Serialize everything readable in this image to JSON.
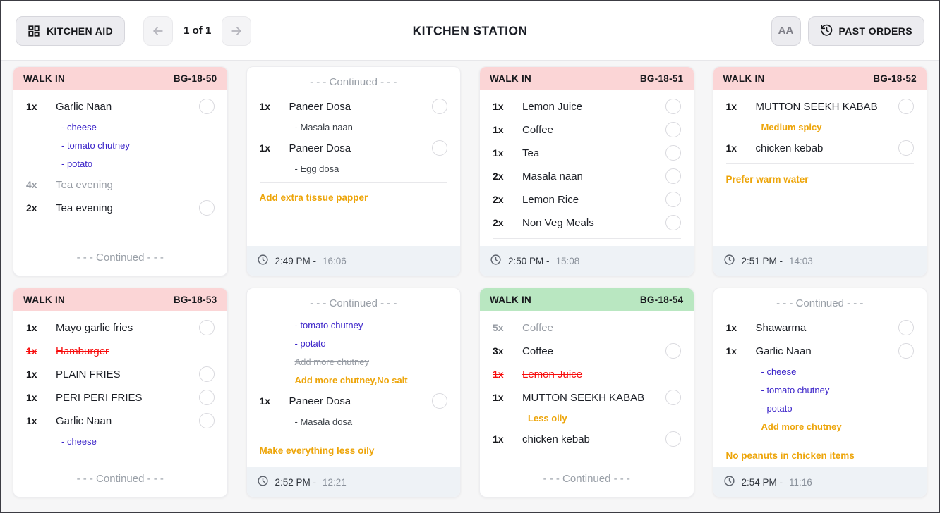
{
  "topbar": {
    "kitchen_aid_label": "KITCHEN AID",
    "pagination": "1 of 1",
    "title": "KITCHEN STATION",
    "font_size_label": "AA",
    "past_orders_label": "PAST ORDERS"
  },
  "labels": {
    "continued": "- - - Continued - - -",
    "time_separator": "-"
  },
  "colors": {
    "header_pink": "#fbd5d6",
    "header_green": "#b9e7c1",
    "modifier_blue": "#3b24c9",
    "note_orange": "#eda50a",
    "cancelled_red": "#f70d0d",
    "struck_gray": "#969ba3",
    "footer_bg": "#eef2f6"
  },
  "cards": [
    {
      "type": "order",
      "variant": "pink",
      "order_type": "WALK IN",
      "order_id": "BG-18-50",
      "lines": [
        {
          "kind": "item",
          "qty": "1x",
          "name": "Garlic Naan",
          "circle": true
        },
        {
          "kind": "mod",
          "style": "blue",
          "text": "- cheese"
        },
        {
          "kind": "mod",
          "style": "blue",
          "text": "- tomato chutney"
        },
        {
          "kind": "mod",
          "style": "blue",
          "text": "- potato"
        },
        {
          "kind": "item",
          "qty": "4x",
          "name": "Tea evening",
          "state": "struck-gray"
        },
        {
          "kind": "item",
          "qty": "2x",
          "name": "Tea evening",
          "circle": true
        }
      ],
      "divider": false,
      "note": null,
      "footer": {
        "type": "continued"
      }
    },
    {
      "type": "continued",
      "lines": [
        {
          "kind": "item",
          "qty": "1x",
          "name": "Paneer Dosa",
          "circle": true
        },
        {
          "kind": "mod",
          "style": "dark",
          "text": "- Masala naan"
        },
        {
          "kind": "item",
          "qty": "1x",
          "name": "Paneer Dosa",
          "circle": true
        },
        {
          "kind": "mod",
          "style": "dark",
          "text": "- Egg dosa"
        }
      ],
      "divider": true,
      "note": "Add extra tissue papper",
      "footer": {
        "type": "time",
        "time": "2:49 PM",
        "elapsed": "16:06"
      }
    },
    {
      "type": "order",
      "variant": "pink",
      "order_type": "WALK IN",
      "order_id": "BG-18-51",
      "lines": [
        {
          "kind": "item",
          "qty": "1x",
          "name": "Lemon Juice",
          "circle": true
        },
        {
          "kind": "item",
          "qty": "1x",
          "name": "Coffee",
          "circle": true
        },
        {
          "kind": "item",
          "qty": "1x",
          "name": "Tea",
          "circle": true
        },
        {
          "kind": "item",
          "qty": "2x",
          "name": "Masala naan",
          "circle": true
        },
        {
          "kind": "item",
          "qty": "2x",
          "name": "Lemon Rice",
          "circle": true
        },
        {
          "kind": "item",
          "qty": "2x",
          "name": "Non Veg Meals",
          "circle": true
        }
      ],
      "divider": true,
      "note": null,
      "footer": {
        "type": "time",
        "time": "2:50 PM",
        "elapsed": "15:08"
      }
    },
    {
      "type": "order",
      "variant": "pink",
      "order_type": "WALK IN",
      "order_id": "BG-18-52",
      "lines": [
        {
          "kind": "item",
          "qty": "1x",
          "name": "MUTTON SEEKH KABAB",
          "circle": true
        },
        {
          "kind": "mod",
          "style": "orange",
          "text": "Medium spicy"
        },
        {
          "kind": "item",
          "qty": "1x",
          "name": "chicken kebab",
          "circle": true
        }
      ],
      "divider": true,
      "note": "Prefer warm water",
      "footer": {
        "type": "time",
        "time": "2:51 PM",
        "elapsed": "14:03"
      }
    },
    {
      "type": "order",
      "variant": "pink",
      "order_type": "WALK IN",
      "order_id": "BG-18-53",
      "lines": [
        {
          "kind": "item",
          "qty": "1x",
          "name": "Mayo garlic fries",
          "circle": true
        },
        {
          "kind": "item",
          "qty": "1x",
          "name": "Hamburger",
          "state": "struck-red"
        },
        {
          "kind": "item",
          "qty": "1x",
          "name": "PLAIN FRIES",
          "circle": true
        },
        {
          "kind": "item",
          "qty": "1x",
          "name": "PERI PERI FRIES",
          "circle": true
        },
        {
          "kind": "item",
          "qty": "1x",
          "name": "Garlic Naan",
          "circle": true
        },
        {
          "kind": "mod",
          "style": "blue",
          "text": "- cheese"
        }
      ],
      "divider": false,
      "note": null,
      "footer": {
        "type": "continued"
      }
    },
    {
      "type": "continued",
      "lines": [
        {
          "kind": "mod",
          "style": "blue",
          "text": "- tomato chutney"
        },
        {
          "kind": "mod",
          "style": "blue",
          "text": "- potato"
        },
        {
          "kind": "mod",
          "style": "struck-gray",
          "text": "Add more chutney"
        },
        {
          "kind": "mod",
          "style": "orange",
          "text": "Add more chutney,No salt"
        },
        {
          "kind": "item",
          "qty": "1x",
          "name": "Paneer Dosa",
          "circle": true
        },
        {
          "kind": "mod",
          "style": "dark",
          "text": "- Masala dosa"
        }
      ],
      "divider": true,
      "note": "Make everything less oily",
      "footer": {
        "type": "time",
        "time": "2:52 PM",
        "elapsed": "12:21"
      }
    },
    {
      "type": "order",
      "variant": "green",
      "order_type": "WALK IN",
      "order_id": "BG-18-54",
      "lines": [
        {
          "kind": "item",
          "qty": "5x",
          "name": "Coffee",
          "state": "struck-gray"
        },
        {
          "kind": "item",
          "qty": "3x",
          "name": "Coffee",
          "circle": true
        },
        {
          "kind": "item",
          "qty": "1x",
          "name": "Lemon Juice",
          "state": "struck-red"
        },
        {
          "kind": "item",
          "qty": "1x",
          "name": "MUTTON SEEKH KABAB",
          "circle": true
        },
        {
          "kind": "mod",
          "style": "orange",
          "text": "Less oily"
        },
        {
          "kind": "item",
          "qty": "1x",
          "name": "chicken kebab",
          "circle": true
        }
      ],
      "divider": false,
      "note": null,
      "footer": {
        "type": "continued"
      }
    },
    {
      "type": "continued",
      "lines": [
        {
          "kind": "item",
          "qty": "1x",
          "name": "Shawarma",
          "circle": true
        },
        {
          "kind": "item",
          "qty": "1x",
          "name": "Garlic Naan",
          "circle": true
        },
        {
          "kind": "mod",
          "style": "blue",
          "text": "- cheese"
        },
        {
          "kind": "mod",
          "style": "blue",
          "text": "- tomato chutney"
        },
        {
          "kind": "mod",
          "style": "blue",
          "text": "- potato"
        },
        {
          "kind": "mod",
          "style": "orange",
          "text": "Add more chutney"
        }
      ],
      "divider": true,
      "note": "No peanuts in chicken items",
      "footer": {
        "type": "time",
        "time": "2:54 PM",
        "elapsed": "11:16"
      }
    }
  ]
}
